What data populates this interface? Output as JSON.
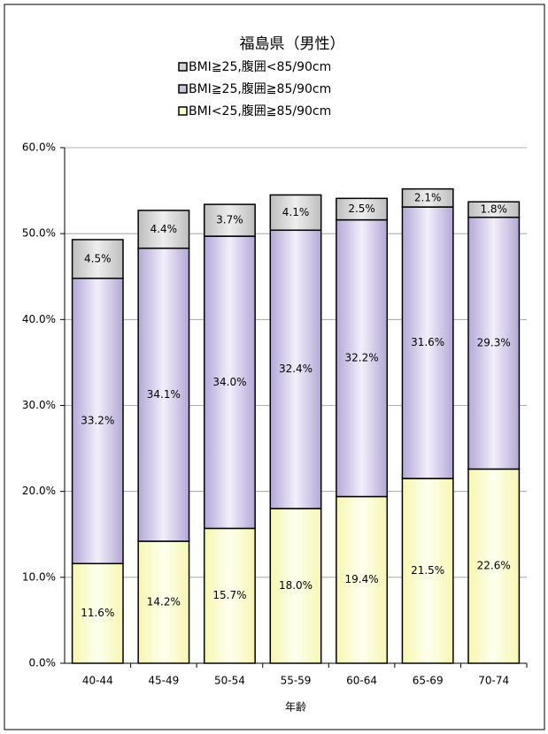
{
  "chart_data": {
    "type": "stacked-bar",
    "title": "福島県（男性）",
    "x_label": "年齢",
    "categories": [
      "40-44",
      "45-49",
      "50-54",
      "55-59",
      "60-64",
      "65-69",
      "70-74"
    ],
    "series": [
      {
        "name": "BMI≧25,腹囲<85/90cm",
        "color": "#d4d4d4",
        "values": [
          4.5,
          4.4,
          3.7,
          4.1,
          2.5,
          2.1,
          1.8
        ],
        "value_labels": [
          "4.5%",
          "4.4%",
          "3.7%",
          "4.1%",
          "2.5%",
          "2.1%",
          "1.8%"
        ]
      },
      {
        "name": "BMI≧25,腹囲≧85/90cm",
        "color": "#cdc4e4",
        "values": [
          33.2,
          34.1,
          34.0,
          32.4,
          32.2,
          31.6,
          29.3
        ],
        "value_labels": [
          "33.2%",
          "34.1%",
          "34.0%",
          "32.4%",
          "32.2%",
          "31.6%",
          "29.3%"
        ]
      },
      {
        "name": "BMI<25,腹囲≧85/90cm",
        "color": "#ffffcc",
        "values": [
          11.6,
          14.2,
          15.7,
          18.0,
          19.4,
          21.5,
          22.6
        ],
        "value_labels": [
          "11.6%",
          "14.2%",
          "15.7%",
          "18.0%",
          "19.4%",
          "21.5%",
          "22.6%"
        ]
      }
    ],
    "ylim": [
      0,
      60
    ],
    "yticks": [
      {
        "value": 0,
        "label": "0.0%"
      },
      {
        "value": 10,
        "label": "10.0%"
      },
      {
        "value": 20,
        "label": "20.0%"
      },
      {
        "value": 30,
        "label": "30.0%"
      },
      {
        "value": 40,
        "label": "40.0%"
      },
      {
        "value": 50,
        "label": "50.0%"
      },
      {
        "value": 60,
        "label": "60.0%"
      }
    ],
    "grid": true
  }
}
